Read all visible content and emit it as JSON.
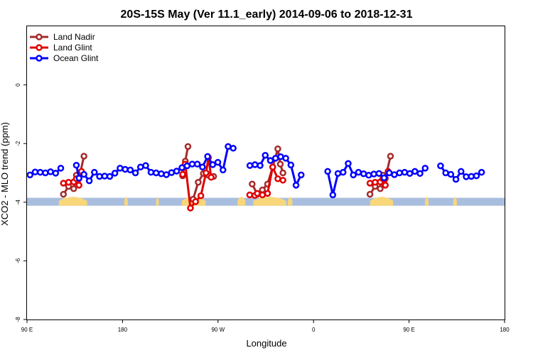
{
  "chart_data": {
    "type": "line",
    "title": "20S-15S May (Ver 11.1_early)   2014-09-06 to 2018-12-31",
    "xlabel": "Longitude",
    "ylabel": "XCO2 - MLO trend (ppm)",
    "xlim": [
      -90,
      180
    ],
    "ylim": [
      -8,
      2
    ],
    "x_ticks": [
      {
        "label": "90 E",
        "value": -90
      },
      {
        "label": "180",
        "value": -36
      },
      {
        "label": "90 W",
        "value": 18
      },
      {
        "label": "0",
        "value": 72
      },
      {
        "label": "90 E",
        "value": 126
      },
      {
        "label": "180",
        "value": 180
      }
    ],
    "y_ticks": [
      {
        "label": "-8",
        "value": -8
      },
      {
        "label": "-6",
        "value": -6
      },
      {
        "label": "-4",
        "value": -4
      },
      {
        "label": "-2",
        "value": -2
      },
      {
        "label": "0",
        "value": 0
      }
    ],
    "legend_position": "top-left",
    "grid": false,
    "series": [
      {
        "name": "Land Nadir",
        "color": "#a52a2a",
        "segments": [
          [
            [
              -69.4,
              -3.73
            ],
            [
              -66.5,
              -3.46
            ],
            [
              -63.6,
              -3.54
            ],
            [
              -62.1,
              -3.08
            ],
            [
              -60.6,
              -3.19
            ],
            [
              -57.8,
              -2.43
            ]
          ],
          [
            [
              -2.0,
              -3.1
            ],
            [
              -0.5,
              -2.6
            ],
            [
              1.0,
              -2.1
            ]
          ],
          [
            [
              3.9,
              -3.9
            ],
            [
              6.8,
              -3.32
            ],
            [
              9.7,
              -3.02
            ],
            [
              12.6,
              -3.08
            ],
            [
              15.5,
              -3.12
            ]
          ],
          [
            [
              37.3,
              -3.38
            ],
            [
              40.2,
              -3.73
            ],
            [
              43.1,
              -3.58
            ],
            [
              46.0,
              -3.38
            ],
            [
              48.9,
              -2.8
            ],
            [
              51.8,
              -2.18
            ],
            [
              53.2,
              -2.7
            ],
            [
              54.7,
              -3.0
            ]
          ],
          [
            [
              103.9,
              -3.73
            ],
            [
              106.8,
              -3.46
            ],
            [
              109.7,
              -3.54
            ],
            [
              111.2,
              -3.08
            ],
            [
              112.6,
              -3.19
            ],
            [
              115.5,
              -2.43
            ]
          ]
        ]
      },
      {
        "name": "Land Glint",
        "color": "#e00000",
        "segments": [
          [
            [
              -69.4,
              -3.35
            ],
            [
              -66.5,
              -3.32
            ],
            [
              -63.6,
              -3.31
            ],
            [
              -62.1,
              -3.2
            ],
            [
              -60.6,
              -3.42
            ],
            [
              -59.2,
              -2.95
            ]
          ],
          [
            [
              -2.0,
              -3.05
            ],
            [
              -0.5,
              -2.7
            ],
            [
              2.4,
              -4.2
            ],
            [
              5.3,
              -3.98
            ],
            [
              8.3,
              -3.78
            ],
            [
              11.2,
              -3.0
            ],
            [
              12.6,
              -2.48
            ],
            [
              14.1,
              -3.15
            ]
          ],
          [
            [
              35.9,
              -3.75
            ],
            [
              38.8,
              -3.77
            ],
            [
              40.2,
              -3.7
            ],
            [
              43.1,
              -3.75
            ],
            [
              46.0,
              -3.7
            ],
            [
              48.9,
              -2.8
            ],
            [
              51.8,
              -3.2
            ],
            [
              54.7,
              -3.25
            ]
          ],
          [
            [
              103.9,
              -3.35
            ],
            [
              106.8,
              -3.32
            ],
            [
              109.7,
              -3.31
            ],
            [
              111.2,
              -3.2
            ],
            [
              112.6,
              -3.42
            ],
            [
              114.1,
              -2.95
            ]
          ]
        ]
      },
      {
        "name": "Ocean Glint",
        "color": "#0000ff",
        "segments": [
          [
            [
              -88.3,
              -3.07
            ],
            [
              -85.4,
              -2.97
            ],
            [
              -82.5,
              -2.98
            ],
            [
              -79.6,
              -3.0
            ],
            [
              -76.7,
              -2.96
            ],
            [
              -73.8,
              -3.01
            ],
            [
              -70.9,
              -2.84
            ],
            [
              -67.9,
              null
            ],
            [
              -62.1,
              -2.74
            ],
            [
              -60.6,
              -3.18
            ],
            [
              -57.8,
              -3.05
            ],
            [
              -54.8,
              -3.27
            ],
            [
              -51.9,
              -2.98
            ],
            [
              -49.0,
              -3.12
            ],
            [
              -46.1,
              -3.11
            ],
            [
              -43.2,
              -3.12
            ],
            [
              -40.3,
              -3.01
            ],
            [
              -37.4,
              -2.84
            ],
            [
              -34.5,
              -2.88
            ],
            [
              -31.6,
              -2.9
            ],
            [
              -28.7,
              -3.0
            ],
            [
              -25.8,
              -2.8
            ],
            [
              -22.9,
              -2.75
            ],
            [
              -19.9,
              -2.98
            ],
            [
              -17.0,
              -3.0
            ],
            [
              -14.1,
              -3.03
            ],
            [
              -11.2,
              -3.06
            ],
            [
              -8.3,
              -2.99
            ],
            [
              -5.4,
              -2.94
            ],
            [
              -2.4,
              -2.82
            ],
            [
              0.5,
              -2.76
            ],
            [
              3.4,
              -2.7
            ],
            [
              6.3,
              -2.7
            ],
            [
              9.2,
              -2.8
            ],
            [
              12.1,
              -2.44
            ],
            [
              15.0,
              -2.72
            ],
            [
              17.9,
              -2.64
            ],
            [
              20.8,
              -2.9
            ],
            [
              23.7,
              -2.1
            ],
            [
              26.6,
              -2.16
            ]
          ],
          [
            [
              36.0,
              -2.75
            ],
            [
              38.9,
              -2.72
            ],
            [
              41.8,
              -2.75
            ],
            [
              44.7,
              -2.4
            ],
            [
              47.6,
              -2.58
            ],
            [
              50.5,
              -2.5
            ],
            [
              53.4,
              -2.45
            ],
            [
              56.3,
              -2.5
            ],
            [
              59.2,
              -2.73
            ],
            [
              62.1,
              -3.42
            ],
            [
              65.0,
              -3.07
            ],
            [
              67.9,
              null
            ],
            [
              80.0,
              -2.95
            ],
            [
              82.9,
              -3.75
            ],
            [
              85.8,
              -3.02
            ],
            [
              88.7,
              -2.98
            ],
            [
              91.6,
              -2.68
            ],
            [
              94.5,
              -3.07
            ],
            [
              97.4,
              -2.98
            ],
            [
              100.3,
              -3.03
            ],
            [
              103.2,
              -3.08
            ],
            [
              106.1,
              -3.04
            ],
            [
              109.0,
              -3.02
            ],
            [
              111.9,
              -3.17
            ],
            [
              114.8,
              -3.0
            ],
            [
              117.7,
              -3.06
            ],
            [
              120.6,
              -3.0
            ],
            [
              123.5,
              -2.98
            ],
            [
              126.4,
              -3.02
            ],
            [
              129.3,
              -2.95
            ],
            [
              132.2,
              -3.02
            ],
            [
              135.1,
              -2.84
            ],
            [
              138.0,
              null
            ],
            [
              143.8,
              -2.76
            ],
            [
              146.7,
              -3.0
            ],
            [
              149.6,
              -3.05
            ],
            [
              152.5,
              -3.22
            ],
            [
              155.4,
              -2.95
            ],
            [
              158.3,
              -3.13
            ],
            [
              161.2,
              -3.12
            ],
            [
              164.1,
              -3.1
            ],
            [
              167.0,
              -2.98
            ]
          ]
        ]
      }
    ],
    "bands": {
      "ocean_color": "#a9bedf",
      "land_color": "#f8d77a",
      "ocean_range": [
        -4.12,
        -3.85
      ],
      "land_regions": [
        [
          -72.0,
          -56.0
        ],
        [
          -35.0,
          -33.0
        ],
        [
          -17.0,
          -15.5
        ],
        [
          -2.5,
          11.0
        ],
        [
          29.0,
          33.5
        ],
        [
          38.0,
          56.5
        ],
        [
          57.5,
          60.0
        ],
        [
          104.0,
          117.0
        ],
        [
          135.0,
          137.0
        ],
        [
          151.0,
          153.0
        ]
      ]
    }
  }
}
